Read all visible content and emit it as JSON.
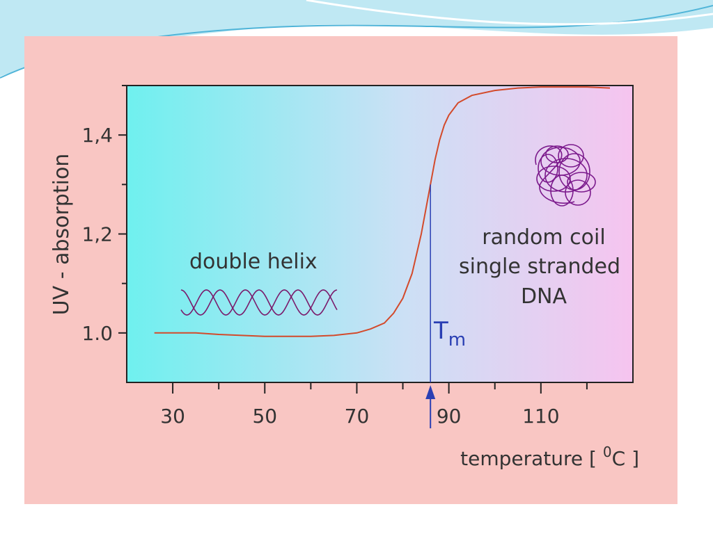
{
  "colors": {
    "panel": "#f9c6c3",
    "plot_left": "#6ff0ef",
    "plot_mid": "#cce0f5",
    "plot_right": "#f6c4ef",
    "curve": "#d34a2b",
    "tm_marker": "#2a3fb3",
    "helix": "#7a1a6b",
    "coil": "#7b1a8c",
    "deco_blue": "#4fb4d8"
  },
  "chart_data": {
    "type": "line",
    "title": "",
    "xlabel": "temperature [ ⁰C ]",
    "xlabel_parts": {
      "prefix": "temperature [ ",
      "superscript": "0",
      "suffix": "C ]"
    },
    "ylabel": "UV - absorption",
    "xlim": [
      20,
      130
    ],
    "ylim": [
      0.9,
      1.5
    ],
    "x_ticks": [
      30,
      50,
      70,
      90,
      110
    ],
    "x_ticks_labels": [
      "30",
      "50",
      "70",
      "90",
      "110"
    ],
    "x_minor_ticks": [
      40,
      60,
      80,
      100,
      120
    ],
    "y_ticks": [
      1.0,
      1.2,
      1.4
    ],
    "y_ticks_labels": [
      "1.0",
      "1,2",
      "1,4"
    ],
    "y_minor_ticks": [
      1.1,
      1.3,
      1.5
    ],
    "grid": false,
    "series": [
      {
        "x": [
          26,
          30,
          35,
          40,
          45,
          50,
          55,
          60,
          65,
          70,
          73,
          76,
          78,
          80,
          82,
          83,
          84,
          85,
          86,
          87,
          88,
          89,
          90,
          92,
          95,
          100,
          105,
          110,
          115,
          120,
          125
        ],
        "y": [
          1.0,
          1.0,
          1.0,
          0.997,
          0.995,
          0.993,
          0.993,
          0.993,
          0.995,
          1.0,
          1.008,
          1.02,
          1.04,
          1.07,
          1.12,
          1.16,
          1.2,
          1.25,
          1.3,
          1.35,
          1.39,
          1.42,
          1.44,
          1.465,
          1.48,
          1.49,
          1.495,
          1.497,
          1.497,
          1.497,
          1.495
        ]
      }
    ],
    "annotations": {
      "left_label": "double helix",
      "right_label_lines": [
        "random coil",
        "single stranded",
        "DNA"
      ],
      "tm_label": "T",
      "tm_subscript": "m",
      "tm_value": 86
    }
  }
}
